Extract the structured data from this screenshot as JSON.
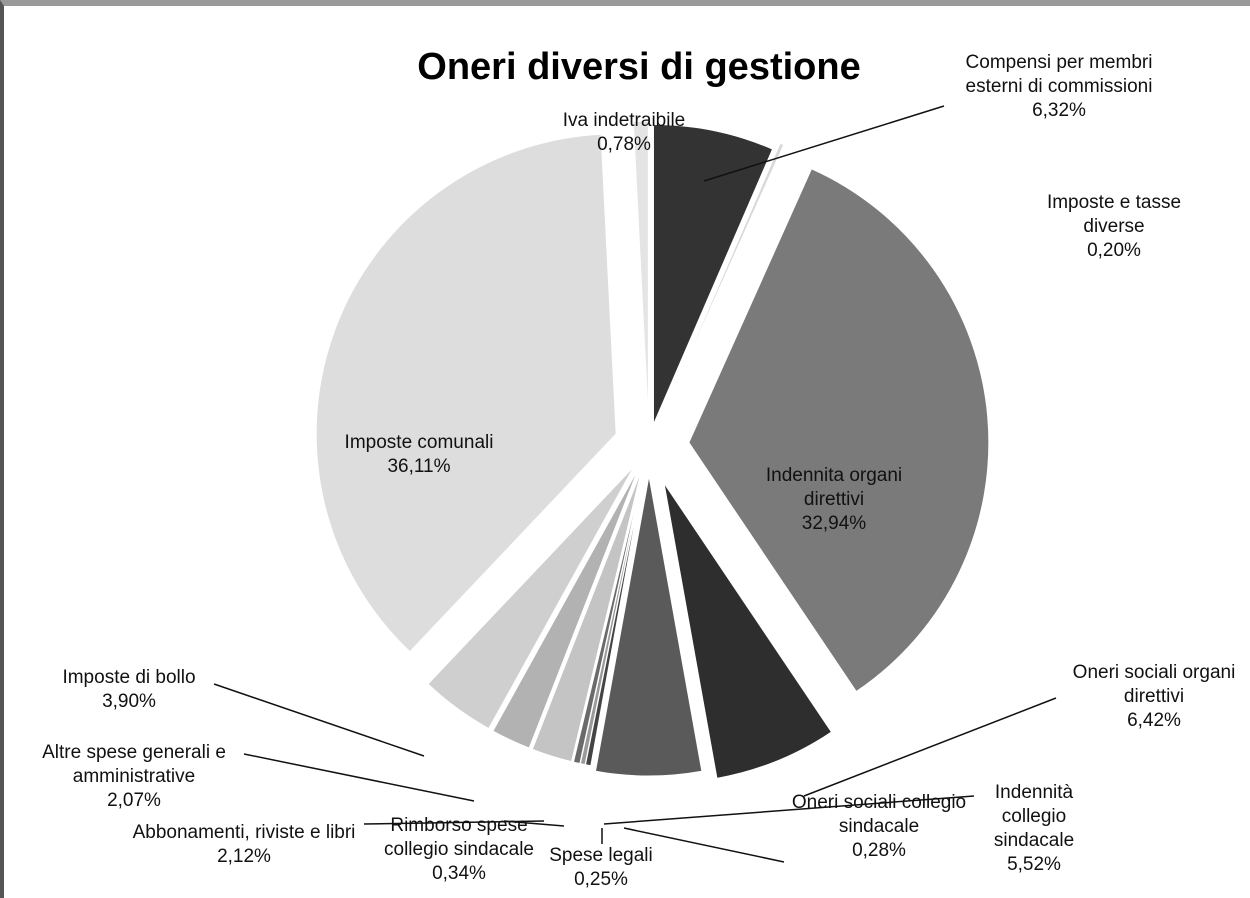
{
  "chart_data": {
    "type": "pie",
    "title": "Oneri diversi di gestione",
    "categories": [
      "Compensi per membri esterni di commissioni",
      "Imposte e tasse diverse",
      "Indennita organi direttivi",
      "Oneri sociali organi direttivi",
      "Indennità collegio sindacale",
      "Oneri sociali collegio sindacale",
      "Spese legali",
      "Rimborso spese collegio sindacale",
      "Abbonamenti, riviste e libri",
      "Altre spese generali e amministrative",
      "Imposte di bollo",
      "Imposte comunali",
      "Iva indetraibile"
    ],
    "values": [
      6.32,
      0.2,
      32.94,
      6.42,
      5.52,
      0.28,
      0.25,
      0.34,
      2.12,
      2.07,
      3.9,
      36.11,
      0.78
    ],
    "value_labels": [
      "6,32%",
      "0,20%",
      "32,94%",
      "6,42%",
      "5,52%",
      "0,28%",
      "0,25%",
      "0,34%",
      "2,12%",
      "2,07%",
      "3,90%",
      "36,11%",
      "0,78%"
    ],
    "colors": [
      "#333333",
      "#d8d8d8",
      "#7a7a7a",
      "#2e2e2e",
      "#5a5a5a",
      "#444444",
      "#9a9a9a",
      "#6a6a6a",
      "#c4c4c4",
      "#b2b2b2",
      "#cfcfcf",
      "#dddddd",
      "#e4e4e4"
    ]
  }
}
